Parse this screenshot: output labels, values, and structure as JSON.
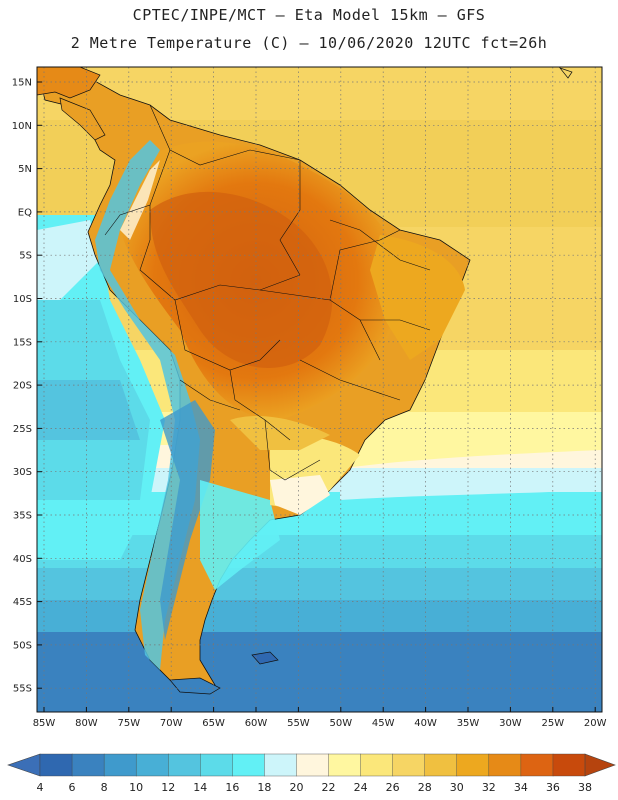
{
  "header": {
    "line1": "CPTEC/INPE/MCT  –  Eta Model 15km – GFS",
    "line2": "2 Metre Temperature (C) – 10/06/2020 12UTC fct=26h"
  },
  "map": {
    "lat_labels": [
      "15N",
      "10N",
      "5N",
      "EQ",
      "5S",
      "10S",
      "15S",
      "20S",
      "25S",
      "30S",
      "35S",
      "40S",
      "45S",
      "50S",
      "55S"
    ],
    "lon_labels": [
      "85W",
      "80W",
      "75W",
      "70W",
      "65W",
      "60W",
      "55W",
      "50W",
      "45W",
      "40W",
      "35W",
      "30W",
      "25W",
      "20W"
    ]
  },
  "colorbar": {
    "ticks": [
      "4",
      "6",
      "8",
      "10",
      "12",
      "14",
      "16",
      "18",
      "20",
      "22",
      "24",
      "26",
      "28",
      "30",
      "32",
      "34",
      "36",
      "38"
    ],
    "colors": [
      "#2f68b0",
      "#3a82bf",
      "#3f9acc",
      "#48afd6",
      "#54c4df",
      "#5cdbe9",
      "#62f0f5",
      "#cdf5fa",
      "#fff6dd",
      "#fff7a0",
      "#fbe77a",
      "#f6d564",
      "#f0c040",
      "#eda81f",
      "#e68a17",
      "#dd6412",
      "#c84a0c"
    ],
    "end_left": "#3b6fb7",
    "end_right": "#b6440e"
  }
}
